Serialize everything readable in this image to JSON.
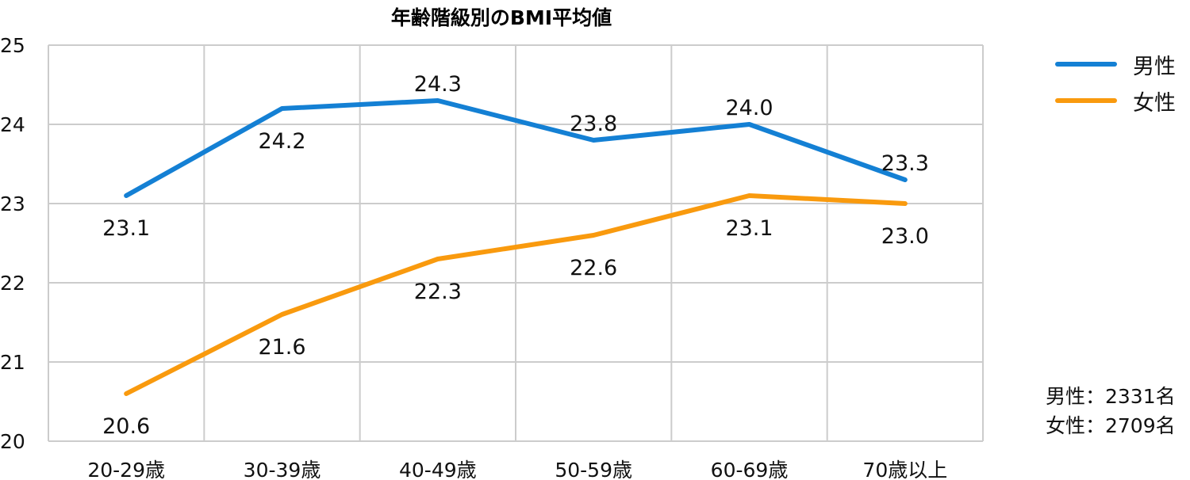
{
  "chart_data": {
    "type": "line",
    "title": "年齢階級別のBMI平均値",
    "xlabel": "",
    "ylabel": "",
    "categories": [
      "20-29歳",
      "30-39歳",
      "40-49歳",
      "50-59歳",
      "60-69歳",
      "70歳以上"
    ],
    "series": [
      {
        "name": "男性",
        "color": "#1480d4",
        "values": [
          23.1,
          24.2,
          24.3,
          23.8,
          24.0,
          23.3
        ]
      },
      {
        "name": "女性",
        "color": "#f99a0e",
        "values": [
          20.6,
          21.6,
          22.3,
          22.6,
          23.1,
          23.0
        ]
      }
    ],
    "ylim": [
      20,
      25
    ],
    "yticks": [
      20,
      21,
      22,
      23,
      24,
      25
    ],
    "grid": true,
    "legend_position": "right-top"
  },
  "legend": {
    "items": [
      {
        "label": "男性",
        "color": "#1480d4"
      },
      {
        "label": "女性",
        "color": "#f99a0e"
      }
    ]
  },
  "counts": {
    "male": "男性：2331名",
    "female": "女性：2709名"
  }
}
